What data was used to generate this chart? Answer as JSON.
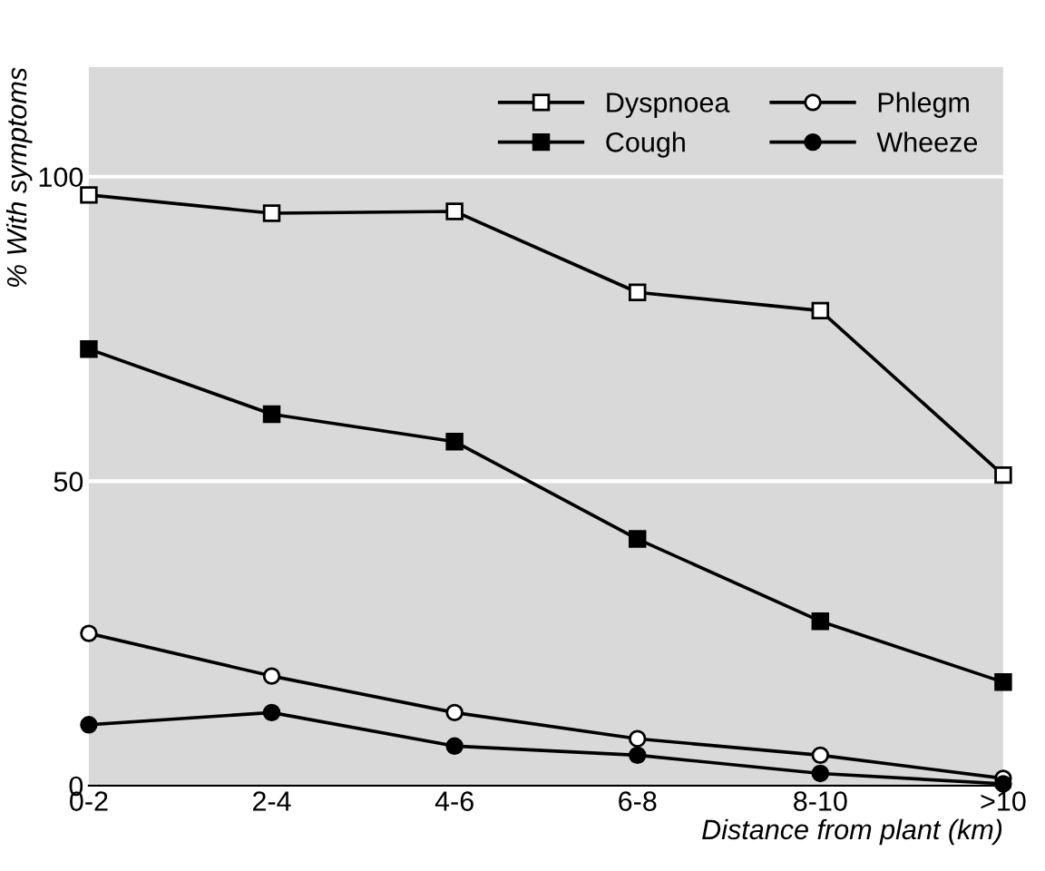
{
  "chart_data": {
    "type": "line",
    "xlabel": "Distance from plant (km)",
    "ylabel": "% With symptoms",
    "categories": [
      "0-2",
      "2-4",
      "4-6",
      "6-8",
      "8-10",
      ">10"
    ],
    "series": [
      {
        "name": "Dyspnoea",
        "color": "#000000",
        "marker": "square",
        "values": [
          97,
          94,
          94.3,
          81,
          78,
          51
        ]
      },
      {
        "name": "Cough",
        "color": "#000000",
        "marker": "square",
        "values": [
          71.7,
          61,
          56.5,
          40.5,
          27,
          17
        ]
      },
      {
        "name": "Phlegm",
        "color": "#000000",
        "marker": "circle",
        "values": [
          25,
          18,
          12,
          7.7,
          5,
          1.2
        ]
      },
      {
        "name": "Wheeze",
        "color": "#000000",
        "marker": "circle",
        "values": [
          10,
          12,
          6.5,
          5,
          2,
          0.3
        ]
      }
    ],
    "ylim": [
      0,
      118
    ],
    "yticks": [
      0,
      50,
      100
    ],
    "grid": "y",
    "legend": "top right",
    "line_style": "solid"
  }
}
